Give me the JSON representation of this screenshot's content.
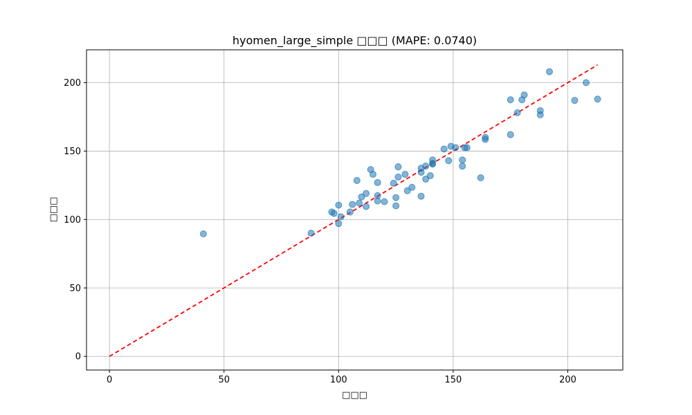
{
  "chart_data": {
    "type": "scatter",
    "title": "hyomen_large_simple □□□ (MAPE: 0.0740)",
    "xlabel": "□□□",
    "ylabel": "□□□",
    "xlim": [
      -10,
      224
    ],
    "ylim": [
      -10,
      224
    ],
    "xticks": [
      0,
      50,
      100,
      150,
      200
    ],
    "yticks": [
      0,
      50,
      100,
      150,
      200
    ],
    "xtick_labels": [
      "0",
      "50",
      "100",
      "150",
      "200"
    ],
    "ytick_labels": [
      "0",
      "50",
      "100",
      "150",
      "200"
    ],
    "grid": true,
    "point_color": "#1f77b4",
    "line_color": "#ff0000",
    "reference_line": {
      "x": [
        0,
        213
      ],
      "y": [
        0,
        213
      ]
    },
    "points": [
      [
        41,
        89.5
      ],
      [
        88,
        90
      ],
      [
        97,
        105.5
      ],
      [
        98,
        104.5
      ],
      [
        100,
        97
      ],
      [
        100,
        110.5
      ],
      [
        101,
        102
      ],
      [
        105,
        105.5
      ],
      [
        106,
        111
      ],
      [
        108,
        128.5
      ],
      [
        109,
        112
      ],
      [
        110,
        116.5
      ],
      [
        112,
        109.5
      ],
      [
        112,
        119
      ],
      [
        114,
        136.5
      ],
      [
        115,
        133
      ],
      [
        117,
        127
      ],
      [
        117,
        117.5
      ],
      [
        117,
        113.5
      ],
      [
        120,
        113
      ],
      [
        124,
        126.5
      ],
      [
        125,
        116
      ],
      [
        125,
        110
      ],
      [
        126,
        138.5
      ],
      [
        126,
        131
      ],
      [
        129,
        133
      ],
      [
        130,
        121
      ],
      [
        132,
        123.5
      ],
      [
        136,
        117
      ],
      [
        136,
        134.5
      ],
      [
        136,
        137.5
      ],
      [
        138,
        129.5
      ],
      [
        138,
        139
      ],
      [
        140,
        132
      ],
      [
        141,
        141
      ],
      [
        141,
        143.5
      ],
      [
        141,
        140.5
      ],
      [
        146,
        151.5
      ],
      [
        148,
        143
      ],
      [
        149,
        153.5
      ],
      [
        151,
        152.5
      ],
      [
        154,
        143.5
      ],
      [
        154,
        139
      ],
      [
        155,
        152.5
      ],
      [
        156,
        152.5
      ],
      [
        162,
        130.5
      ],
      [
        164,
        160
      ],
      [
        164,
        158.5
      ],
      [
        175,
        187.5
      ],
      [
        175,
        162
      ],
      [
        178,
        178
      ],
      [
        180,
        187.5
      ],
      [
        181,
        191
      ],
      [
        188,
        179.5
      ],
      [
        188,
        176.5
      ],
      [
        192,
        208
      ],
      [
        203,
        187
      ],
      [
        208,
        200
      ],
      [
        213,
        188
      ]
    ]
  }
}
